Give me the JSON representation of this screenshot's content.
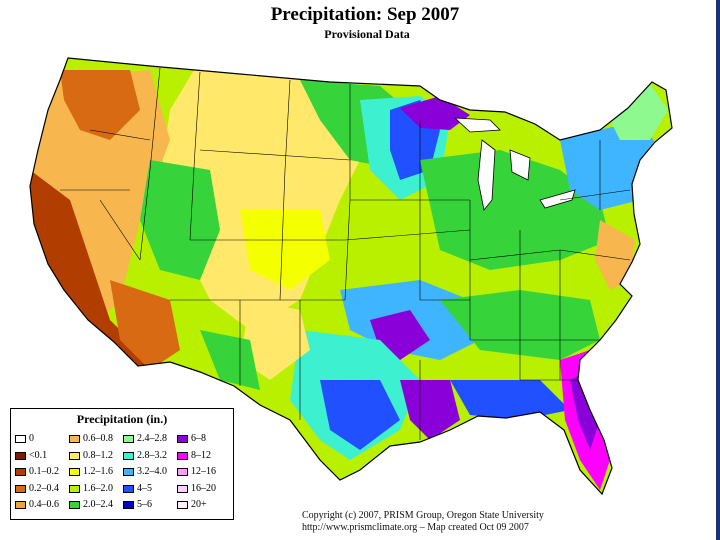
{
  "title": "Precipitation: Sep 2007",
  "subtitle": "Provisional Data",
  "legend": {
    "title": "Precipitation (in.)",
    "items": [
      {
        "label": "0",
        "color": "#ffffff"
      },
      {
        "label": "<0.1",
        "color": "#7a1a00"
      },
      {
        "label": "0.1–0.2",
        "color": "#b23d00"
      },
      {
        "label": "0.2–0.4",
        "color": "#d86a14"
      },
      {
        "label": "0.4–0.6",
        "color": "#f0a23a"
      },
      {
        "label": "0.6–0.8",
        "color": "#f7b74e"
      },
      {
        "label": "0.8–1.2",
        "color": "#ffe86a"
      },
      {
        "label": "1.2–1.6",
        "color": "#f4ff00"
      },
      {
        "label": "1.6–2.0",
        "color": "#b8f000"
      },
      {
        "label": "2.0–2.4",
        "color": "#36d33a"
      },
      {
        "label": "2.4–2.8",
        "color": "#8ef98e"
      },
      {
        "label": "2.8–3.2",
        "color": "#3cf0d0"
      },
      {
        "label": "3.2–4.0",
        "color": "#3fb4ff"
      },
      {
        "label": "4–5",
        "color": "#2050ff"
      },
      {
        "label": "5–6",
        "color": "#0000c8"
      },
      {
        "label": "6–8",
        "color": "#8a00d8"
      },
      {
        "label": "8–12",
        "color": "#ff00ff"
      },
      {
        "label": "12–16",
        "color": "#ff9cff"
      },
      {
        "label": "16–20",
        "color": "#ffd0ff"
      },
      {
        "label": "20+",
        "color": "#fff0ff"
      }
    ]
  },
  "credit": {
    "line1": "Copyright (c) 2007, PRISM Group, Oregon State University",
    "line2": "http://www.prismclimate.org  –  Map created Oct 09 2007"
  }
}
